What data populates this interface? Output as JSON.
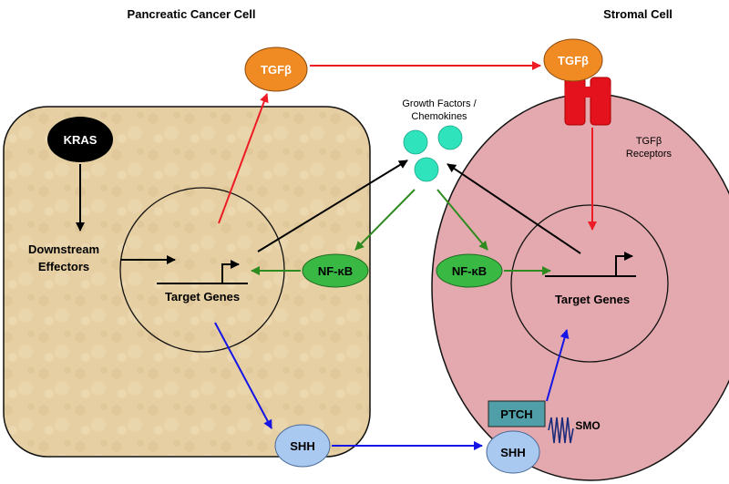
{
  "titles": {
    "cancer_cell": "Pancreatic Cancer Cell",
    "stromal_cell": "Stromal Cell"
  },
  "nodes": {
    "kras": "KRAS",
    "downstream_line1": "Downstream",
    "downstream_line2": "Effectors",
    "tgfb_cancer": "TGFβ",
    "tgfb_stromal": "TGFβ",
    "tgfb_receptors_line1": "TGFβ",
    "tgfb_receptors_line2": "Receptors",
    "growth_factors_line1": "Growth Factors /",
    "growth_factors_line2": "Chemokines",
    "nfkb_cancer": "NF-κB",
    "nfkb_stromal": "NF-κB",
    "target_genes_cancer": "Target Genes",
    "target_genes_stromal": "Target Genes",
    "shh_secreted": "SHH",
    "shh_bound": "SHH",
    "ptch": "PTCH",
    "smo": "SMO"
  },
  "colors": {
    "cancer_cell_fill": "#e6cfa3",
    "stromal_cell_fill": "#e3a9ae",
    "tgfb_fill": "#f08a23",
    "receptor_fill": "#e4121c",
    "growth_factor_fill": "#2fe3bd",
    "nfkb_fill": "#39b843",
    "shh_fill": "#a9c9f0",
    "ptch_fill": "#4f9ea8",
    "smo_color": "#1a2a7a",
    "red_arrow": "#ee1b24",
    "green_arrow": "#2e8b1f",
    "blue_arrow": "#1515e6",
    "black_arrow": "#000000"
  }
}
